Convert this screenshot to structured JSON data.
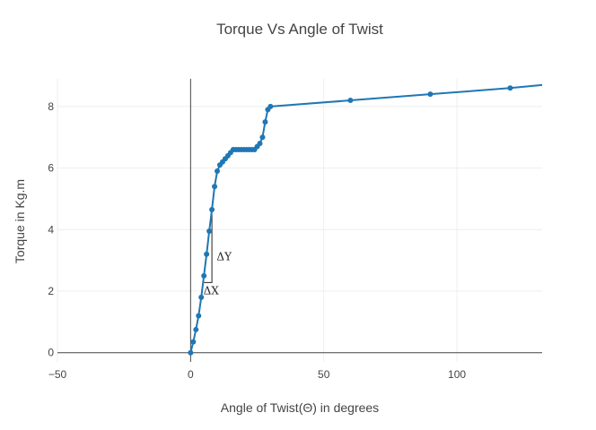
{
  "chart_data": {
    "type": "line",
    "title": "Torque Vs Angle of Twist",
    "xlabel": "Angle of Twist(Θ) in degrees",
    "ylabel": "Torque in Kg.m",
    "xlim": [
      -50,
      132
    ],
    "ylim": [
      -0.3,
      8.9
    ],
    "xticks": [
      -50,
      0,
      50,
      100
    ],
    "yticks": [
      0,
      2,
      4,
      6,
      8
    ],
    "x_tick_labels": [
      "−50",
      "0",
      "50",
      "100"
    ],
    "y_tick_labels": [
      "0",
      "2",
      "4",
      "6",
      "8"
    ],
    "grid": true,
    "color": "#1f77b4",
    "series": [
      {
        "x": [
          0,
          1,
          2,
          3,
          4,
          5,
          6,
          7,
          8,
          9,
          10,
          11,
          12,
          13,
          14,
          15,
          16,
          17,
          18,
          19,
          20,
          21,
          22,
          23,
          24,
          25,
          26,
          27,
          28,
          29,
          30,
          60,
          90,
          120,
          132
        ],
        "y": [
          0,
          0.35,
          0.75,
          1.2,
          1.8,
          2.5,
          3.2,
          3.95,
          4.65,
          5.4,
          5.9,
          6.1,
          6.2,
          6.3,
          6.4,
          6.5,
          6.6,
          6.6,
          6.6,
          6.6,
          6.6,
          6.6,
          6.6,
          6.6,
          6.6,
          6.7,
          6.8,
          7.0,
          7.5,
          7.9,
          8.0,
          8.2,
          8.4,
          8.6,
          8.7
        ],
        "markers": [
          true,
          true,
          true,
          true,
          true,
          true,
          true,
          true,
          true,
          true,
          true,
          true,
          true,
          true,
          true,
          true,
          true,
          true,
          true,
          true,
          true,
          true,
          true,
          true,
          true,
          true,
          true,
          true,
          true,
          true,
          true,
          true,
          true,
          true,
          false
        ]
      }
    ],
    "annotations": {
      "dx_label": "ΔX",
      "dy_label": "ΔY"
    }
  }
}
